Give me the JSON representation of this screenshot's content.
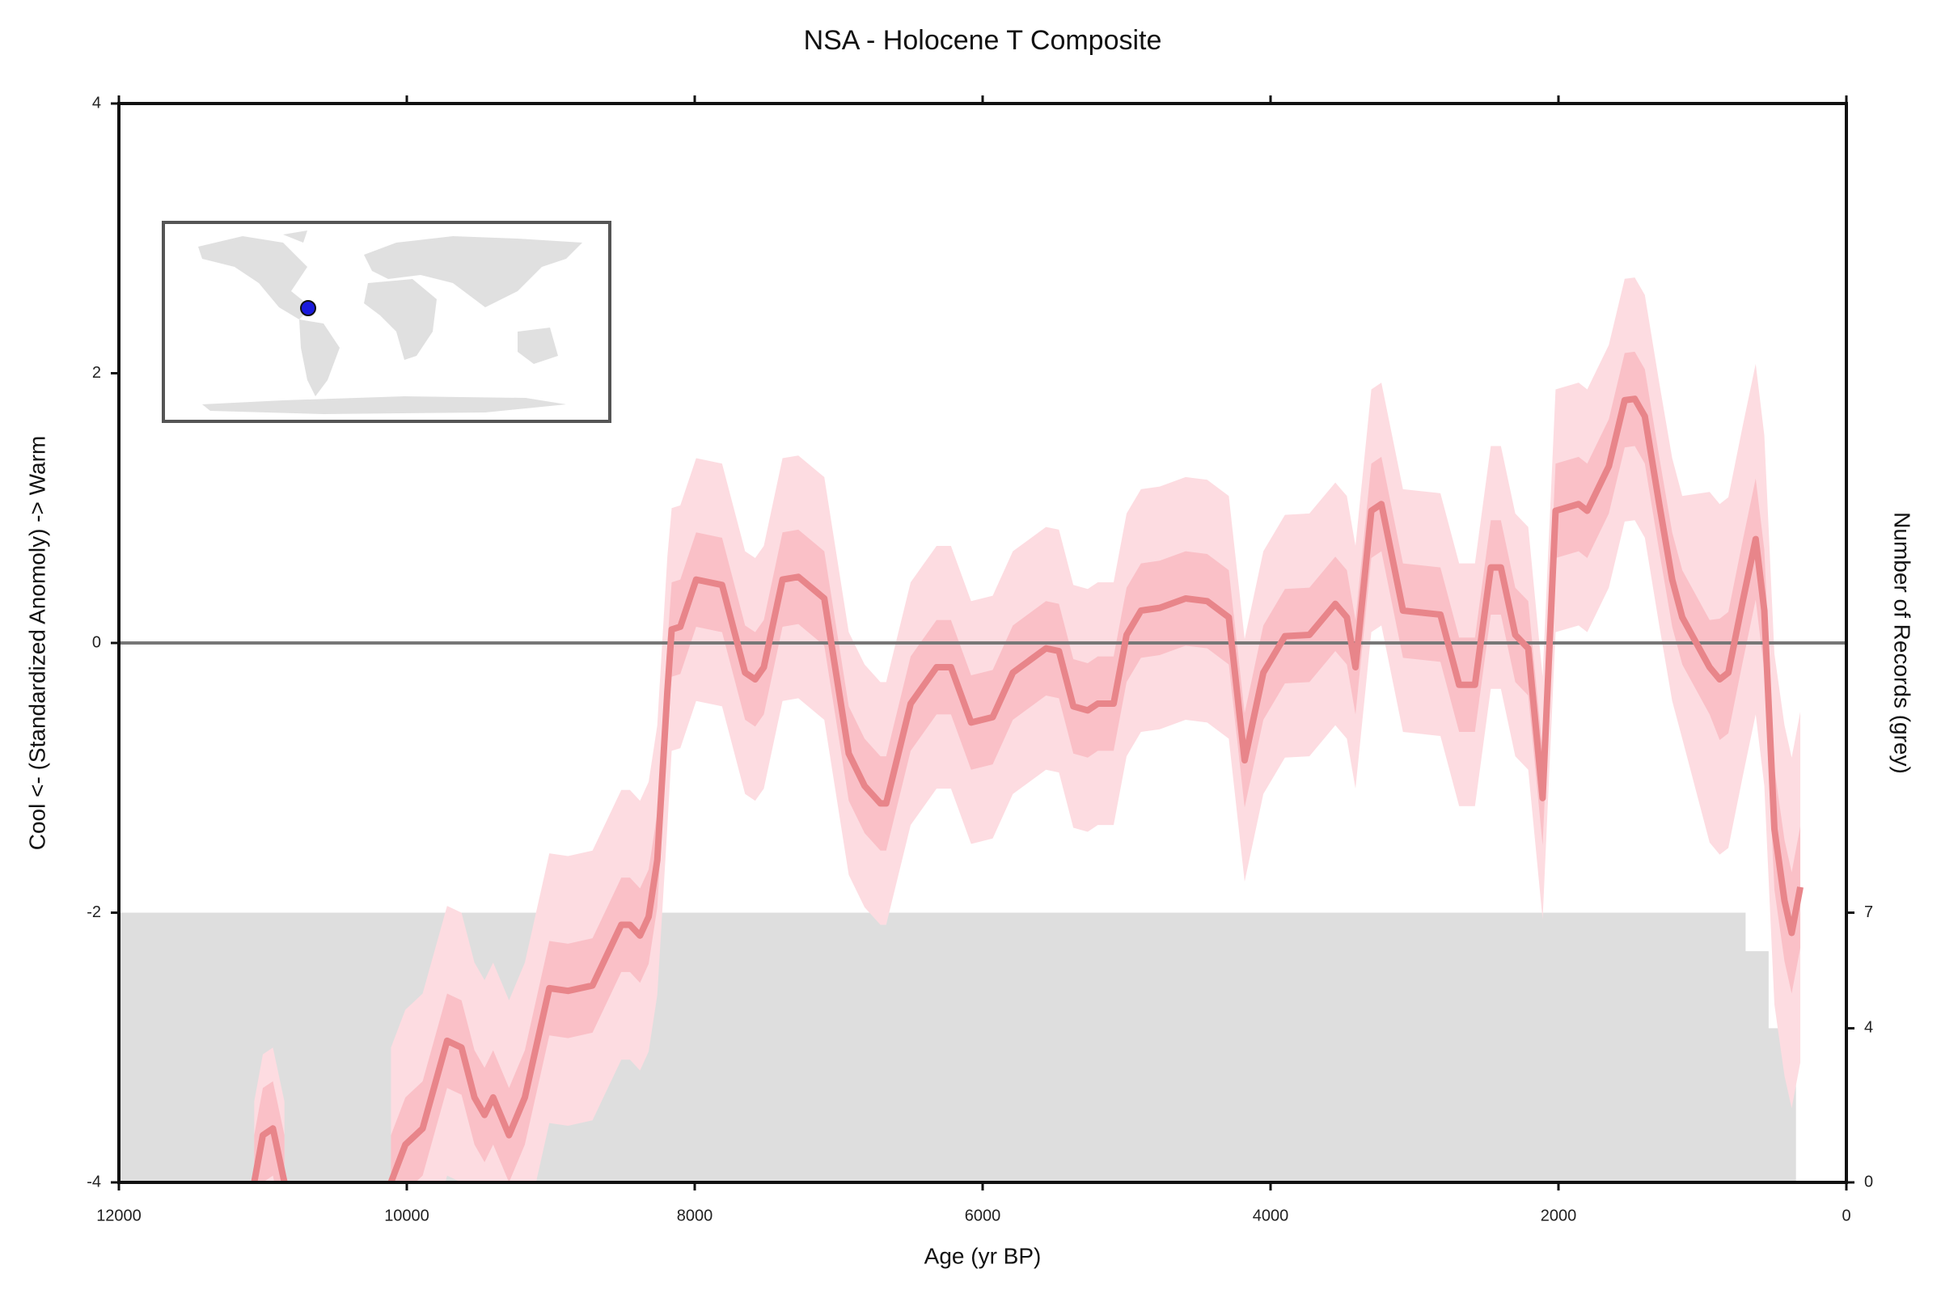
{
  "chart_data": {
    "type": "line",
    "title": "NSA - Holocene T Composite",
    "xlabel": "Age (yr BP)",
    "ylabel": "Cool <- (Standardized Anomoly) -> Warm",
    "y2label": "Number of Records (grey)",
    "xlim": [
      12000,
      0
    ],
    "xticks": [
      12000,
      10000,
      8000,
      6000,
      4000,
      2000,
      0
    ],
    "ylim": [
      -4,
      4
    ],
    "yticks": [
      -4,
      -2,
      0,
      2,
      4
    ],
    "y2lim": [
      0,
      28
    ],
    "y2ticks": [
      0,
      4,
      7
    ],
    "hline": 0,
    "x": [
      11060,
      11000,
      10930,
      10850,
      10500,
      10110,
      10010,
      9890,
      9720,
      9620,
      9530,
      9460,
      9400,
      9290,
      9180,
      9010,
      8880,
      8710,
      8510,
      8450,
      8380,
      8320,
      8260,
      8190,
      8160,
      8100,
      7990,
      7810,
      7650,
      7580,
      7520,
      7390,
      7280,
      7100,
      6930,
      6820,
      6710,
      6670,
      6500,
      6320,
      6220,
      6080,
      5930,
      5790,
      5560,
      5470,
      5370,
      5270,
      5200,
      5090,
      5000,
      4900,
      4770,
      4590,
      4440,
      4290,
      4180,
      4050,
      3900,
      3730,
      3550,
      3470,
      3410,
      3300,
      3230,
      3080,
      2820,
      2690,
      2580,
      2470,
      2400,
      2300,
      2210,
      2110,
      2020,
      1860,
      1800,
      1650,
      1540,
      1470,
      1400,
      1300,
      1210,
      1140,
      950,
      880,
      820,
      720,
      630,
      570,
      500,
      430,
      380,
      320
    ],
    "series": [
      {
        "color": "#e8858a",
        "inner_color": "#fac0c7",
        "outer_color": "#fddce1",
        "values": [
          -4,
          -3.65,
          -3.6,
          -4,
          null,
          -4,
          -3.72,
          -3.6,
          -2.95,
          -3.0,
          -3.37,
          -3.5,
          -3.37,
          -3.65,
          -3.37,
          -2.56,
          -2.58,
          -2.54,
          -2.09,
          -2.09,
          -2.17,
          -2.03,
          -1.61,
          -0.36,
          0.1,
          0.12,
          0.47,
          0.43,
          -0.22,
          -0.27,
          -0.18,
          0.47,
          0.49,
          0.33,
          -0.82,
          -1.06,
          -1.19,
          -1.19,
          -0.45,
          -0.18,
          -0.18,
          -0.59,
          -0.55,
          -0.22,
          -0.04,
          -0.06,
          -0.47,
          -0.5,
          -0.45,
          -0.45,
          0.06,
          0.24,
          0.26,
          0.33,
          0.31,
          0.19,
          -0.87,
          -0.22,
          0.05,
          0.06,
          0.29,
          0.19,
          -0.18,
          0.98,
          1.03,
          0.24,
          0.21,
          -0.31,
          -0.31,
          0.56,
          0.56,
          0.06,
          -0.04,
          -1.15,
          0.98,
          1.03,
          0.98,
          1.31,
          1.8,
          1.81,
          1.68,
          1.03,
          0.47,
          0.19,
          -0.18,
          -0.27,
          -0.22,
          0.31,
          0.77,
          0.24,
          -1.38,
          -1.91,
          -2.15,
          -1.81
        ],
        "error_inner": [
          0.35,
          0.35,
          0.35,
          0.35,
          null,
          0.35,
          0.35,
          0.35,
          0.35,
          0.35,
          0.35,
          0.35,
          0.35,
          0.35,
          0.35,
          0.35,
          0.35,
          0.35,
          0.35,
          0.35,
          0.35,
          0.35,
          0.35,
          0.35,
          0.35,
          0.35,
          0.35,
          0.35,
          0.35,
          0.35,
          0.35,
          0.35,
          0.35,
          0.35,
          0.35,
          0.35,
          0.35,
          0.35,
          0.35,
          0.35,
          0.35,
          0.35,
          0.35,
          0.35,
          0.35,
          0.35,
          0.35,
          0.35,
          0.35,
          0.35,
          0.35,
          0.35,
          0.35,
          0.35,
          0.35,
          0.35,
          0.35,
          0.35,
          0.35,
          0.35,
          0.35,
          0.35,
          0.35,
          0.35,
          0.35,
          0.35,
          0.35,
          0.35,
          0.35,
          0.35,
          0.35,
          0.35,
          0.35,
          0.35,
          0.35,
          0.35,
          0.35,
          0.35,
          0.35,
          0.35,
          0.35,
          0.35,
          0.35,
          0.35,
          0.35,
          0.45,
          0.45,
          0.45,
          0.45,
          0.45,
          0.45,
          0.45,
          0.45,
          0.45
        ],
        "error_outer": [
          0.6,
          0.6,
          0.6,
          0.6,
          null,
          1.0,
          1.0,
          1.0,
          1.0,
          1.0,
          1.0,
          1.0,
          1.0,
          1.0,
          1.0,
          1.0,
          1.0,
          1.0,
          1.0,
          1.0,
          1.0,
          1.0,
          1.0,
          1.0,
          0.9,
          0.9,
          0.9,
          0.9,
          0.9,
          0.9,
          0.9,
          0.9,
          0.9,
          0.9,
          0.9,
          0.9,
          0.9,
          0.9,
          0.9,
          0.9,
          0.9,
          0.9,
          0.9,
          0.9,
          0.9,
          0.9,
          0.9,
          0.9,
          0.9,
          0.9,
          0.9,
          0.9,
          0.9,
          0.9,
          0.9,
          0.9,
          0.9,
          0.9,
          0.9,
          0.9,
          0.9,
          0.9,
          0.9,
          0.9,
          0.9,
          0.9,
          0.9,
          0.9,
          0.9,
          0.9,
          0.9,
          0.9,
          0.9,
          0.9,
          0.9,
          0.9,
          0.9,
          0.9,
          0.9,
          0.9,
          0.9,
          0.9,
          0.9,
          0.9,
          1.3,
          1.3,
          1.3,
          1.3,
          1.3,
          1.3,
          1.3,
          1.3,
          1.3,
          1.3
        ]
      }
    ],
    "records": {
      "color": "#dedede",
      "axis": "y2",
      "step": "post",
      "x": [
        12000,
        700,
        540,
        350
      ],
      "values": [
        7,
        6,
        4,
        0
      ]
    }
  }
}
